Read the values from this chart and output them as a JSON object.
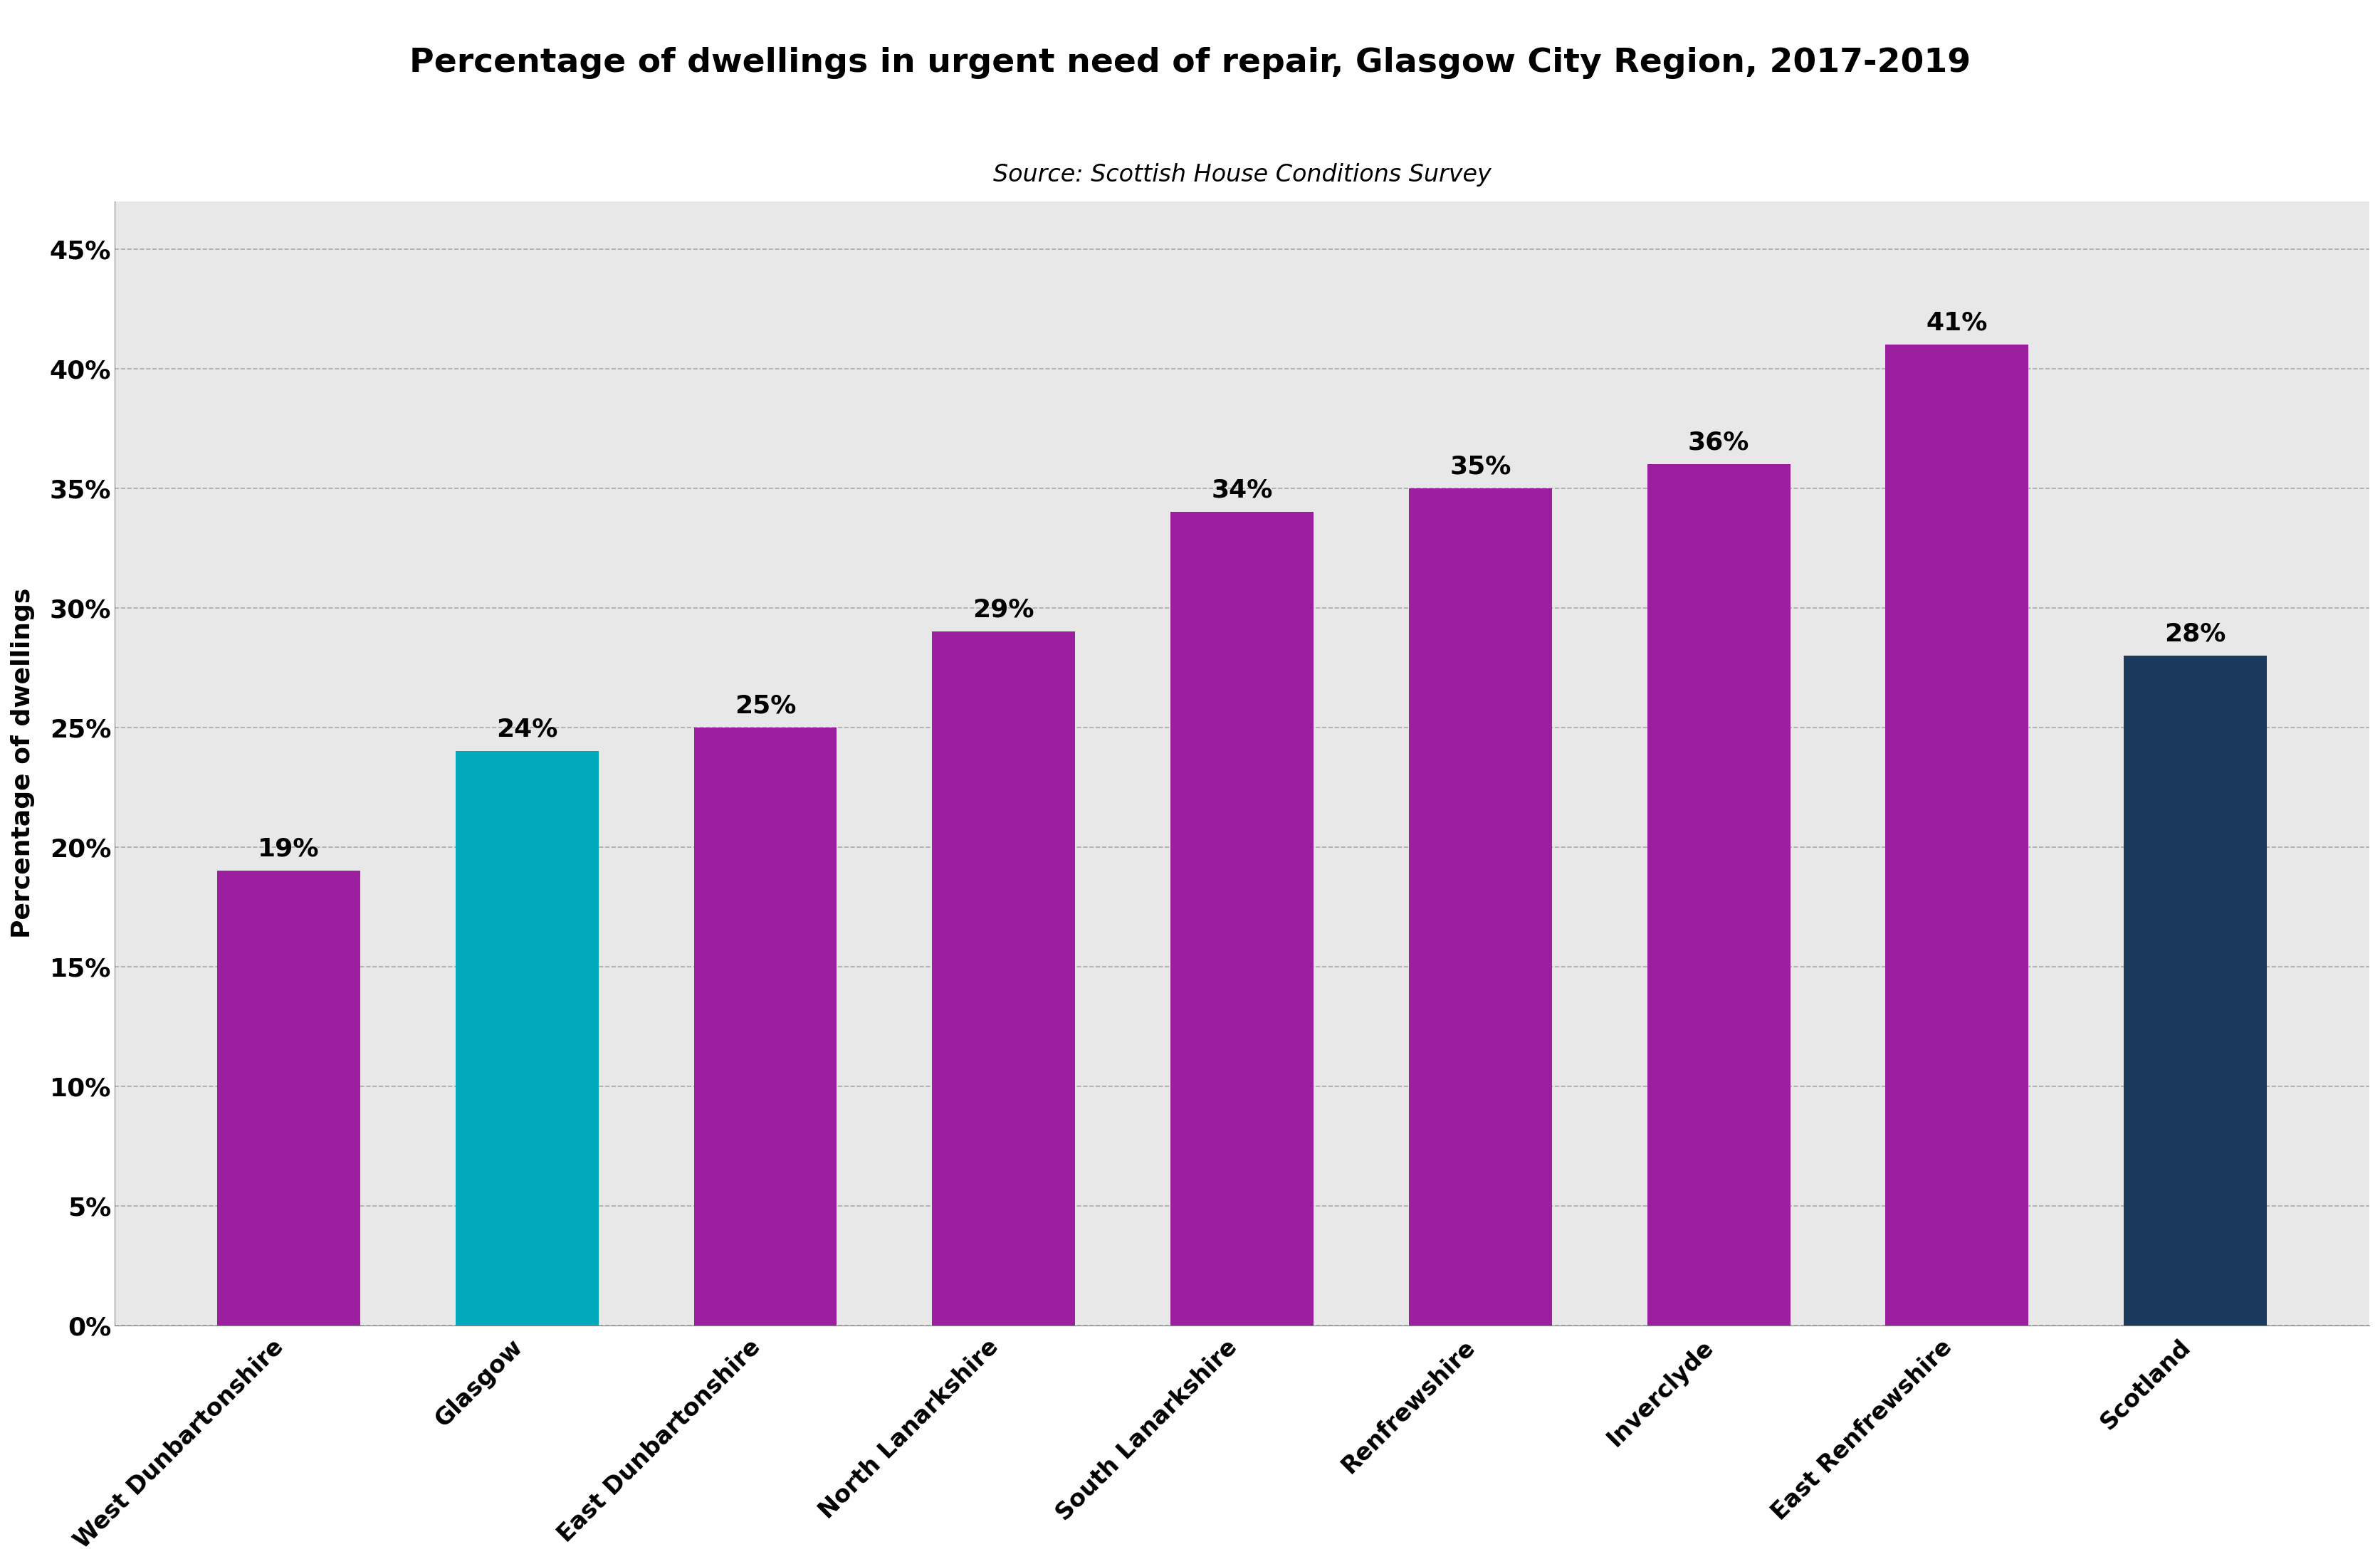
{
  "categories": [
    "West Dunbartonshire",
    "Glasgow",
    "East Dunbartonshire",
    "North Lanarkshire",
    "South Lanarkshire",
    "Renfrewshire",
    "Inverclyde",
    "East Renfrewshire",
    "Scotland"
  ],
  "values": [
    19,
    24,
    25,
    29,
    34,
    35,
    36,
    41,
    28
  ],
  "bar_colors": [
    "#9B1F9E",
    "#00AABB",
    "#9B1F9E",
    "#9B1F9E",
    "#9B1F9E",
    "#9B1F9E",
    "#9B1F9E",
    "#9B1F9E",
    "#1B3A5C"
  ],
  "title": "Percentage of dwellings in urgent need of repair, Glasgow City Region, 2017-2019",
  "subtitle": "Source: Scottish House Conditions Survey",
  "ylabel": "Percentage of dwellings",
  "ylim": [
    0,
    47
  ],
  "yticks": [
    0,
    5,
    10,
    15,
    20,
    25,
    30,
    35,
    40,
    45
  ],
  "ytick_labels": [
    "0%",
    "5%",
    "10%",
    "15%",
    "20%",
    "25%",
    "30%",
    "35%",
    "40%",
    "45%"
  ],
  "background_color": "#E8E8E8",
  "title_fontsize": 34,
  "subtitle_fontsize": 24,
  "ylabel_fontsize": 26,
  "tick_fontsize": 26,
  "bar_label_fontsize": 26,
  "xtick_fontsize": 24
}
